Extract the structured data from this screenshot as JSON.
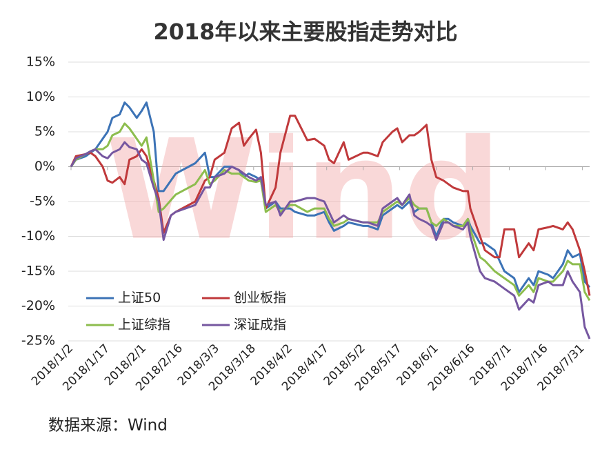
{
  "chart_data": {
    "type": "line",
    "title": "2018年以来主要股指走势对比",
    "source": "数据来源：Wind",
    "watermark": "Wind",
    "x": [
      "2018/1/2",
      "2018/1/4",
      "2018/1/8",
      "2018/1/10",
      "2018/1/12",
      "2018/1/15",
      "2018/1/17",
      "2018/1/19",
      "2018/1/22",
      "2018/1/24",
      "2018/1/26",
      "2018/1/29",
      "2018/1/31",
      "2018/2/2",
      "2018/2/5",
      "2018/2/7",
      "2018/2/9",
      "2018/2/12",
      "2018/2/14",
      "2018/2/22",
      "2018/2/26",
      "2018/2/28",
      "2018/3/2",
      "2018/3/6",
      "2018/3/9",
      "2018/3/12",
      "2018/3/14",
      "2018/3/16",
      "2018/3/19",
      "2018/3/21",
      "2018/3/23",
      "2018/3/27",
      "2018/3/29",
      "2018/4/2",
      "2018/4/4",
      "2018/4/9",
      "2018/4/12",
      "2018/4/16",
      "2018/4/18",
      "2018/4/20",
      "2018/4/24",
      "2018/4/26",
      "2018/5/2",
      "2018/5/4",
      "2018/5/8",
      "2018/5/10",
      "2018/5/14",
      "2018/5/16",
      "2018/5/18",
      "2018/5/21",
      "2018/5/23",
      "2018/5/25",
      "2018/5/28",
      "2018/5/30",
      "2018/6/1",
      "2018/6/4",
      "2018/6/6",
      "2018/6/8",
      "2018/6/12",
      "2018/6/14",
      "2018/6/15",
      "2018/6/19",
      "2018/6/21",
      "2018/6/25",
      "2018/6/27",
      "2018/6/29",
      "2018/7/3",
      "2018/7/5",
      "2018/7/9",
      "2018/7/11",
      "2018/7/13",
      "2018/7/17",
      "2018/7/19",
      "2018/7/23",
      "2018/7/25",
      "2018/7/27",
      "2018/7/30",
      "2018/8/1",
      "2018/8/3"
    ],
    "series": [
      {
        "name": "上证50",
        "color": "#3c73b6",
        "values": [
          0,
          1,
          1.5,
          2,
          2.5,
          4,
          5,
          7,
          7.5,
          9.2,
          8.5,
          7,
          8,
          9.2,
          5,
          -3.5,
          -3.5,
          -2,
          -1,
          0.5,
          2,
          -1.5,
          -1.5,
          0,
          0,
          -0.5,
          -1.5,
          -1,
          -1.5,
          -2,
          -6,
          -5,
          -6,
          -6,
          -6.5,
          -7,
          -7,
          -6.5,
          -8,
          -9.2,
          -8.5,
          -8,
          -8.5,
          -8.5,
          -9,
          -7,
          -6,
          -5.5,
          -6,
          -5,
          -6.5,
          -6,
          -6,
          -8,
          -10,
          -7.5,
          -7.5,
          -8,
          -8.5,
          -7.5,
          -8.5,
          -11,
          -11,
          -12,
          -13.5,
          -15,
          -16,
          -18,
          -16,
          -17,
          -15,
          -15.5,
          -16,
          -14,
          -12,
          -13,
          -12.5,
          -16.5,
          -17.3
        ]
      },
      {
        "name": "创业板指",
        "color": "#c0393b",
        "values": [
          0,
          1.5,
          1.8,
          2,
          1.5,
          0,
          -2,
          -2.3,
          -1.5,
          -2.5,
          1,
          1.5,
          2.5,
          1.5,
          -2,
          -4.5,
          -9.5,
          -7,
          -6.5,
          -5,
          -2,
          -1.5,
          1,
          2,
          5.5,
          6.3,
          3,
          4,
          5.3,
          2,
          -6,
          -3,
          2,
          7.3,
          7.3,
          3.8,
          4,
          3,
          1,
          0.5,
          3.5,
          1,
          2,
          2,
          1.5,
          3.5,
          5,
          5.5,
          3.5,
          4.5,
          4.5,
          5,
          6,
          1,
          -1.5,
          -2,
          -2.5,
          -3,
          -3.5,
          -3.5,
          -6,
          -10,
          -12,
          -13,
          -13,
          -9,
          -9,
          -13,
          -11,
          -12,
          -9,
          -8.7,
          -8.5,
          -9,
          -8,
          -9,
          -12,
          -15,
          -18.5
        ]
      },
      {
        "name": "上证综指",
        "color": "#8dbd4e",
        "values": [
          0,
          1,
          1.8,
          2.2,
          2.5,
          2.5,
          3,
          4.5,
          5,
          6.2,
          5.5,
          4,
          3,
          4.2,
          -2,
          -6.5,
          -6,
          -4.8,
          -4,
          -2.5,
          -0.5,
          -2.5,
          -2,
          -0.5,
          -1,
          -1,
          -1.5,
          -2,
          -2.2,
          -2,
          -6.5,
          -5.5,
          -6.5,
          -5.5,
          -5.5,
          -6.5,
          -6,
          -6,
          -7.5,
          -8.5,
          -8,
          -7.5,
          -8,
          -8,
          -8,
          -6.5,
          -5.5,
          -5,
          -5.5,
          -4.5,
          -5.5,
          -6,
          -6,
          -8,
          -8.5,
          -7.5,
          -8,
          -8.5,
          -8.5,
          -7.5,
          -9,
          -13,
          -13.5,
          -15,
          -15.5,
          -16,
          -17,
          -18.5,
          -17,
          -18,
          -16,
          -16.5,
          -16.5,
          -15,
          -13.5,
          -14,
          -14,
          -18,
          -19.2
        ]
      },
      {
        "name": "深证成指",
        "color": "#7657a0",
        "values": [
          0,
          1.2,
          1.8,
          2.2,
          2.5,
          1.5,
          1.2,
          2,
          2.5,
          3.5,
          2.8,
          2.5,
          1,
          0.5,
          -3,
          -5,
          -10.5,
          -7,
          -6.5,
          -5.5,
          -3,
          -3,
          -1.5,
          -1,
          0,
          -0.5,
          -1,
          -1.5,
          -2,
          -1.5,
          -5.5,
          -5,
          -7,
          -5,
          -5,
          -4.5,
          -4.5,
          -5,
          -6.5,
          -8,
          -7,
          -7.5,
          -8,
          -8,
          -8.5,
          -6,
          -5,
          -4.5,
          -5.5,
          -4,
          -7,
          -7.5,
          -8,
          -8.5,
          -10.5,
          -8,
          -8,
          -8.5,
          -9,
          -8,
          -10,
          -15,
          -16,
          -16.5,
          -17,
          -17.5,
          -18.5,
          -20.5,
          -19,
          -19.5,
          -17,
          -16.5,
          -17,
          -17,
          -15,
          -16.5,
          -18,
          -23,
          -24.7
        ]
      }
    ],
    "xlim": [
      "2018/1/2",
      "2018/8/3"
    ],
    "xticks": [
      "2018/1/2",
      "2018/1/17",
      "2018/2/1",
      "2018/2/16",
      "2018/3/3",
      "2018/3/18",
      "2018/4/2",
      "2018/4/17",
      "2018/5/2",
      "2018/5/17",
      "2018/6/1",
      "2018/6/16",
      "2018/7/1",
      "2018/7/16",
      "2018/7/31"
    ],
    "ylim": [
      -25,
      15
    ],
    "yticks": [
      {
        "value": 15,
        "label": "15%"
      },
      {
        "value": 10,
        "label": "10%"
      },
      {
        "value": 5,
        "label": "5%"
      },
      {
        "value": 0,
        "label": "0%"
      },
      {
        "value": -5,
        "label": "-5%"
      },
      {
        "value": -10,
        "label": "-10%"
      },
      {
        "value": -15,
        "label": "-15%"
      },
      {
        "value": -20,
        "label": "-20%"
      },
      {
        "value": -25,
        "label": "-25%"
      }
    ],
    "grid": true,
    "legend": "lower-left"
  }
}
